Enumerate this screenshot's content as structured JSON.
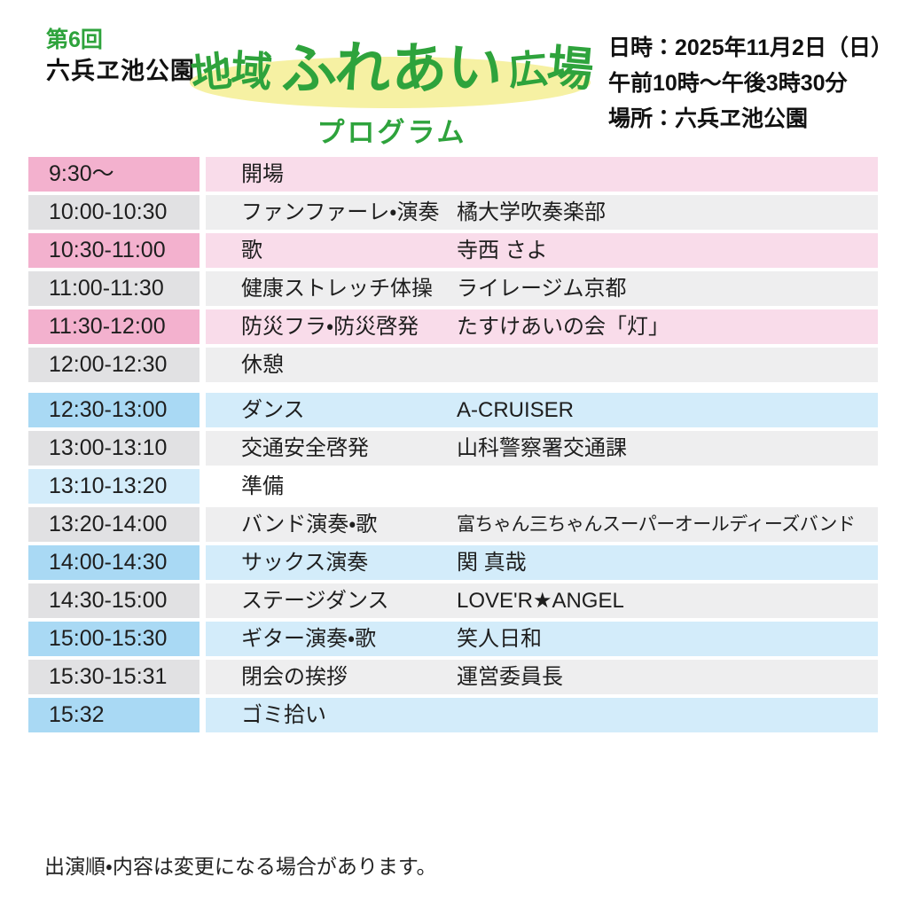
{
  "header": {
    "edition": "第6回",
    "venue_title": "六兵ヱ池公園",
    "logo_text": "地域ふれあい広場",
    "subtitle": "プログラム",
    "info_lines": [
      "日時：2025年11月2日（日）",
      "午前10時〜午後3時30分",
      "場所：六兵ヱ池公園"
    ]
  },
  "colors": {
    "accent_green": "#2ea33c",
    "logo_highlight_yellow": "#f6f1a3",
    "schemes": {
      "pink": {
        "time": "#f3b1ce",
        "body": "#f9dcea"
      },
      "gray": {
        "time": "#e1e1e3",
        "body": "#eeeeef"
      },
      "blue": {
        "time": "#a9d9f4",
        "body": "#d3ecfa"
      },
      "bluelight": {
        "time": "#d3ecfa",
        "body": "#ffffff"
      }
    }
  },
  "schedule": {
    "sections": [
      {
        "rows": [
          {
            "time": "9:30〜",
            "event": "開場",
            "performer": "",
            "scheme": "pink"
          },
          {
            "time": "10:00-10:30",
            "event": "ファンファーレ・演奏",
            "performer": "橘大学吹奏楽部",
            "scheme": "gray"
          },
          {
            "time": "10:30-11:00",
            "event": "歌",
            "performer": "寺西 さよ",
            "scheme": "pink"
          },
          {
            "time": "11:00-11:30",
            "event": "健康ストレッチ体操",
            "performer": "ライレージム京都",
            "scheme": "gray"
          },
          {
            "time": "11:30-12:00",
            "event": "防災フラ・防災啓発",
            "performer": "たすけあいの会「灯」",
            "scheme": "pink"
          },
          {
            "time": "12:00-12:30",
            "event": "休憩",
            "performer": "",
            "scheme": "gray"
          }
        ]
      },
      {
        "rows": [
          {
            "time": "12:30-13:00",
            "event": "ダンス",
            "performer": "A-CRUISER",
            "scheme": "blue"
          },
          {
            "time": "13:00-13:10",
            "event": "交通安全啓発",
            "performer": "山科警察署交通課",
            "scheme": "gray"
          },
          {
            "time": "13:10-13:20",
            "event": "準備",
            "performer": "",
            "scheme": "bluelight"
          },
          {
            "time": "13:20-14:00",
            "event": "バンド演奏・歌",
            "performer": "富ちゃん三ちゃんスーパーオールディーズバンド",
            "scheme": "gray"
          },
          {
            "time": "14:00-14:30",
            "event": "サックス演奏",
            "performer": "関 真哉",
            "scheme": "blue"
          },
          {
            "time": "14:30-15:00",
            "event": "ステージダンス",
            "performer": "LOVE'R★ANGEL",
            "scheme": "gray"
          },
          {
            "time": "15:00-15:30",
            "event": "ギター演奏・歌",
            "performer": "笑人日和",
            "scheme": "blue"
          },
          {
            "time": "15:30-15:31",
            "event": "閉会の挨拶",
            "performer": "運営委員長",
            "scheme": "gray"
          },
          {
            "time": "15:32",
            "event": "ゴミ拾い",
            "performer": "",
            "scheme": "blue"
          }
        ]
      }
    ]
  },
  "footer": {
    "note": "出演順・内容は変更になる場合があります。"
  }
}
